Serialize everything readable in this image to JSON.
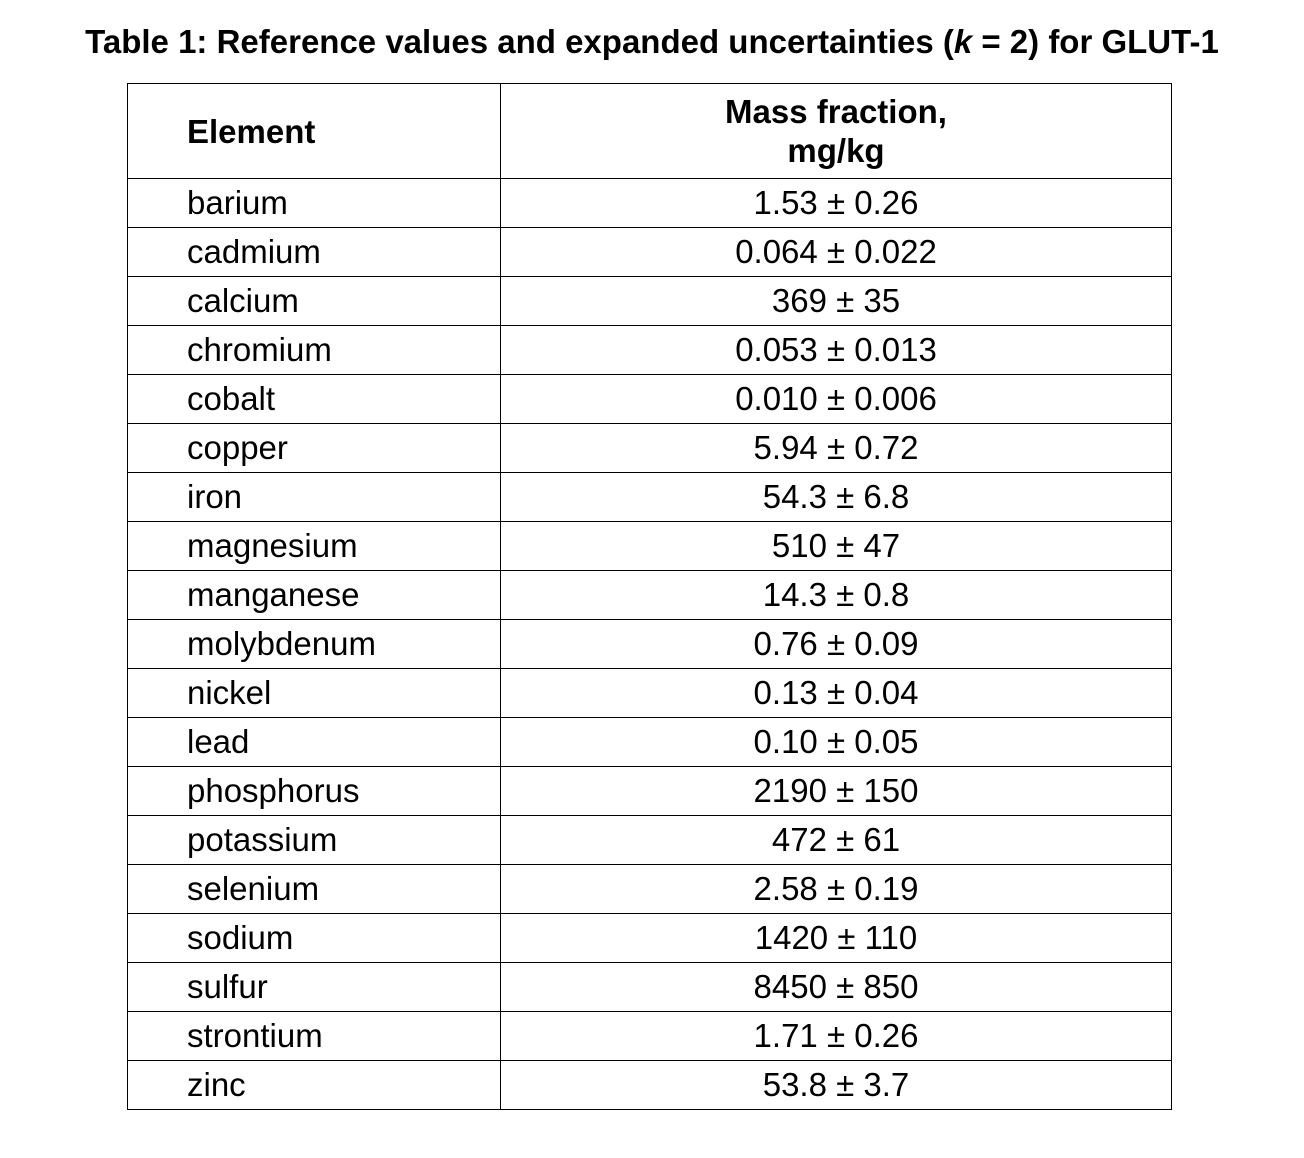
{
  "caption": {
    "prefix": "Table 1: Reference values and expanded uncertainties (",
    "k_symbol": "k",
    "suffix": " = 2) for GLUT-1"
  },
  "table": {
    "headers": {
      "element": "Element",
      "mass_line1": "Mass fraction,",
      "mass_line2": "mg/kg"
    },
    "rows": [
      {
        "element": "barium",
        "value": "1.53 ± 0.26"
      },
      {
        "element": "cadmium",
        "value": "0.064 ± 0.022"
      },
      {
        "element": "calcium",
        "value": "369 ± 35"
      },
      {
        "element": "chromium",
        "value": "0.053 ± 0.013"
      },
      {
        "element": "cobalt",
        "value": "0.010 ± 0.006"
      },
      {
        "element": "copper",
        "value": "5.94 ± 0.72"
      },
      {
        "element": "iron",
        "value": "54.3 ± 6.8"
      },
      {
        "element": "magnesium",
        "value": "510 ± 47"
      },
      {
        "element": "manganese",
        "value": "14.3 ± 0.8"
      },
      {
        "element": "molybdenum",
        "value": "0.76 ± 0.09"
      },
      {
        "element": "nickel",
        "value": "0.13 ± 0.04"
      },
      {
        "element": "lead",
        "value": "0.10 ± 0.05"
      },
      {
        "element": "phosphorus",
        "value": "2190 ± 150"
      },
      {
        "element": "potassium",
        "value": "472 ± 61"
      },
      {
        "element": "selenium",
        "value": "2.58 ± 0.19"
      },
      {
        "element": "sodium",
        "value": "1420 ± 110"
      },
      {
        "element": "sulfur",
        "value": "8450 ± 850"
      },
      {
        "element": "strontium",
        "value": "1.71 ± 0.26"
      },
      {
        "element": "zinc",
        "value": "53.8 ± 3.7"
      }
    ]
  }
}
